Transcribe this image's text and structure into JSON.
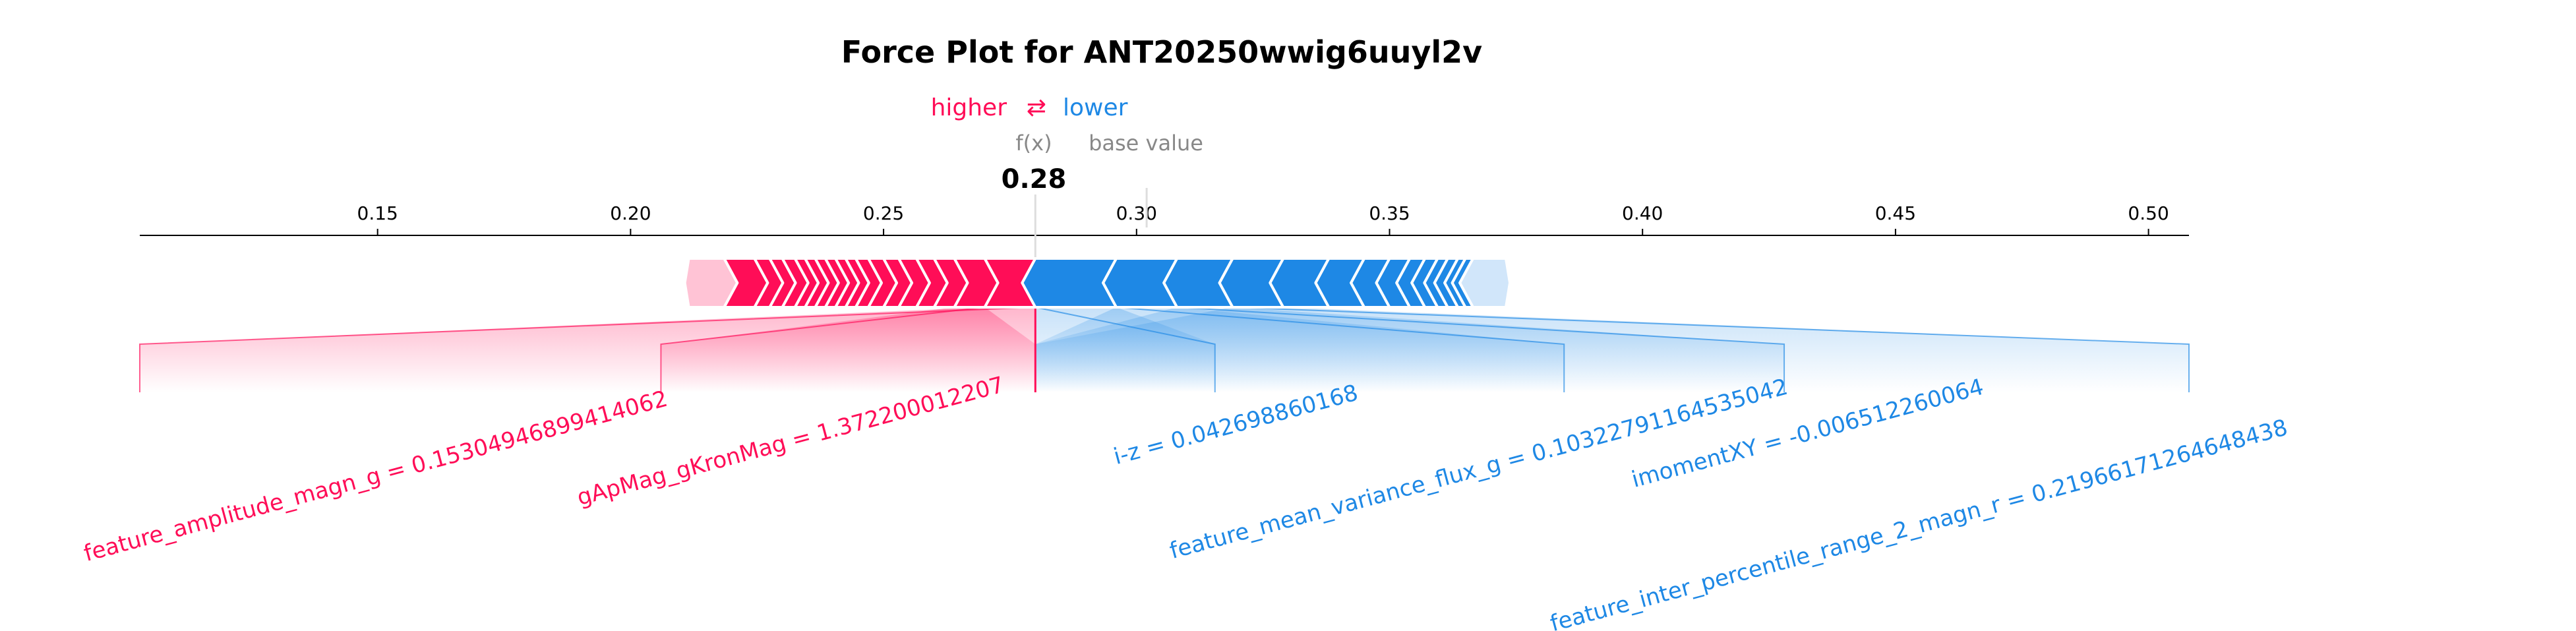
{
  "chart_data": {
    "type": "force",
    "title": "Force Plot for ANT20250wwig6uuyl2v",
    "legend": {
      "higher": "higher",
      "lower": "lower",
      "arrow": "⇄"
    },
    "fx_label": "f(x)",
    "base_label": "base value",
    "fx_value": 0.28,
    "fx_text": "0.28",
    "base_value": 0.302,
    "xlim": [
      0.103,
      0.508
    ],
    "ticks": [
      0.15,
      0.2,
      0.25,
      0.3,
      0.35,
      0.4,
      0.45,
      0.5
    ],
    "tick_labels": [
      "0.15",
      "0.20",
      "0.25",
      "0.30",
      "0.35",
      "0.40",
      "0.45",
      "0.50"
    ],
    "positive_segments": [
      [
        0.2115,
        0.2185
      ],
      [
        0.2185,
        0.2245
      ],
      [
        0.2245,
        0.2275
      ],
      [
        0.2275,
        0.23
      ],
      [
        0.23,
        0.2325
      ],
      [
        0.2325,
        0.2345
      ],
      [
        0.2345,
        0.2365
      ],
      [
        0.2365,
        0.2385
      ],
      [
        0.2385,
        0.2405
      ],
      [
        0.2405,
        0.2425
      ],
      [
        0.2425,
        0.2445
      ],
      [
        0.2445,
        0.247
      ],
      [
        0.247,
        0.25
      ],
      [
        0.25,
        0.253
      ],
      [
        0.253,
        0.2565
      ],
      [
        0.2565,
        0.26
      ],
      [
        0.26,
        0.264
      ],
      [
        0.264,
        0.27
      ],
      [
        0.27,
        0.28
      ]
    ],
    "negative_segments": [
      [
        0.28,
        0.296
      ],
      [
        0.296,
        0.308
      ],
      [
        0.308,
        0.319
      ],
      [
        0.319,
        0.329
      ],
      [
        0.329,
        0.338
      ],
      [
        0.338,
        0.345
      ],
      [
        0.345,
        0.35
      ],
      [
        0.35,
        0.354
      ],
      [
        0.354,
        0.357
      ],
      [
        0.357,
        0.3595
      ],
      [
        0.3595,
        0.3615
      ],
      [
        0.3615,
        0.3635
      ],
      [
        0.3635,
        0.365
      ],
      [
        0.365,
        0.3665
      ],
      [
        0.3665,
        0.373
      ]
    ],
    "positive_features": [
      {
        "label": "feature_amplitude_magn_g = 0.15304946899414062",
        "start": 0.27,
        "end": 0.28,
        "anchor": 0.103,
        "text_at": 0.15
      },
      {
        "label": "gApMag_gKronMag = 1.372200012207",
        "start": 0.264,
        "end": 0.27,
        "anchor": 0.206,
        "text_at": 0.232
      }
    ],
    "negative_features": [
      {
        "label": "i-z = 0.042698860168",
        "start": 0.28,
        "end": 0.296,
        "anchor": 0.3155,
        "text_at": 0.32
      },
      {
        "label": "feature_mean_variance_flux_g = 0.10322791164535042",
        "start": 0.296,
        "end": 0.308,
        "anchor": 0.3845,
        "text_at": 0.368
      },
      {
        "label": "imomentXY = -0.006512260064",
        "start": 0.308,
        "end": 0.319,
        "anchor": 0.428,
        "text_at": 0.433
      },
      {
        "label": "feature_inter_percentile_range_2_magn_r = 0.21966171264648438",
        "start": 0.319,
        "end": 0.329,
        "anchor": 0.508,
        "text_at": 0.455
      }
    ],
    "colors": {
      "positive": "#ff0d57",
      "negative": "#1e88e5",
      "positive_light": "#ffc3d5",
      "negative_light": "#d1e6fa"
    }
  }
}
